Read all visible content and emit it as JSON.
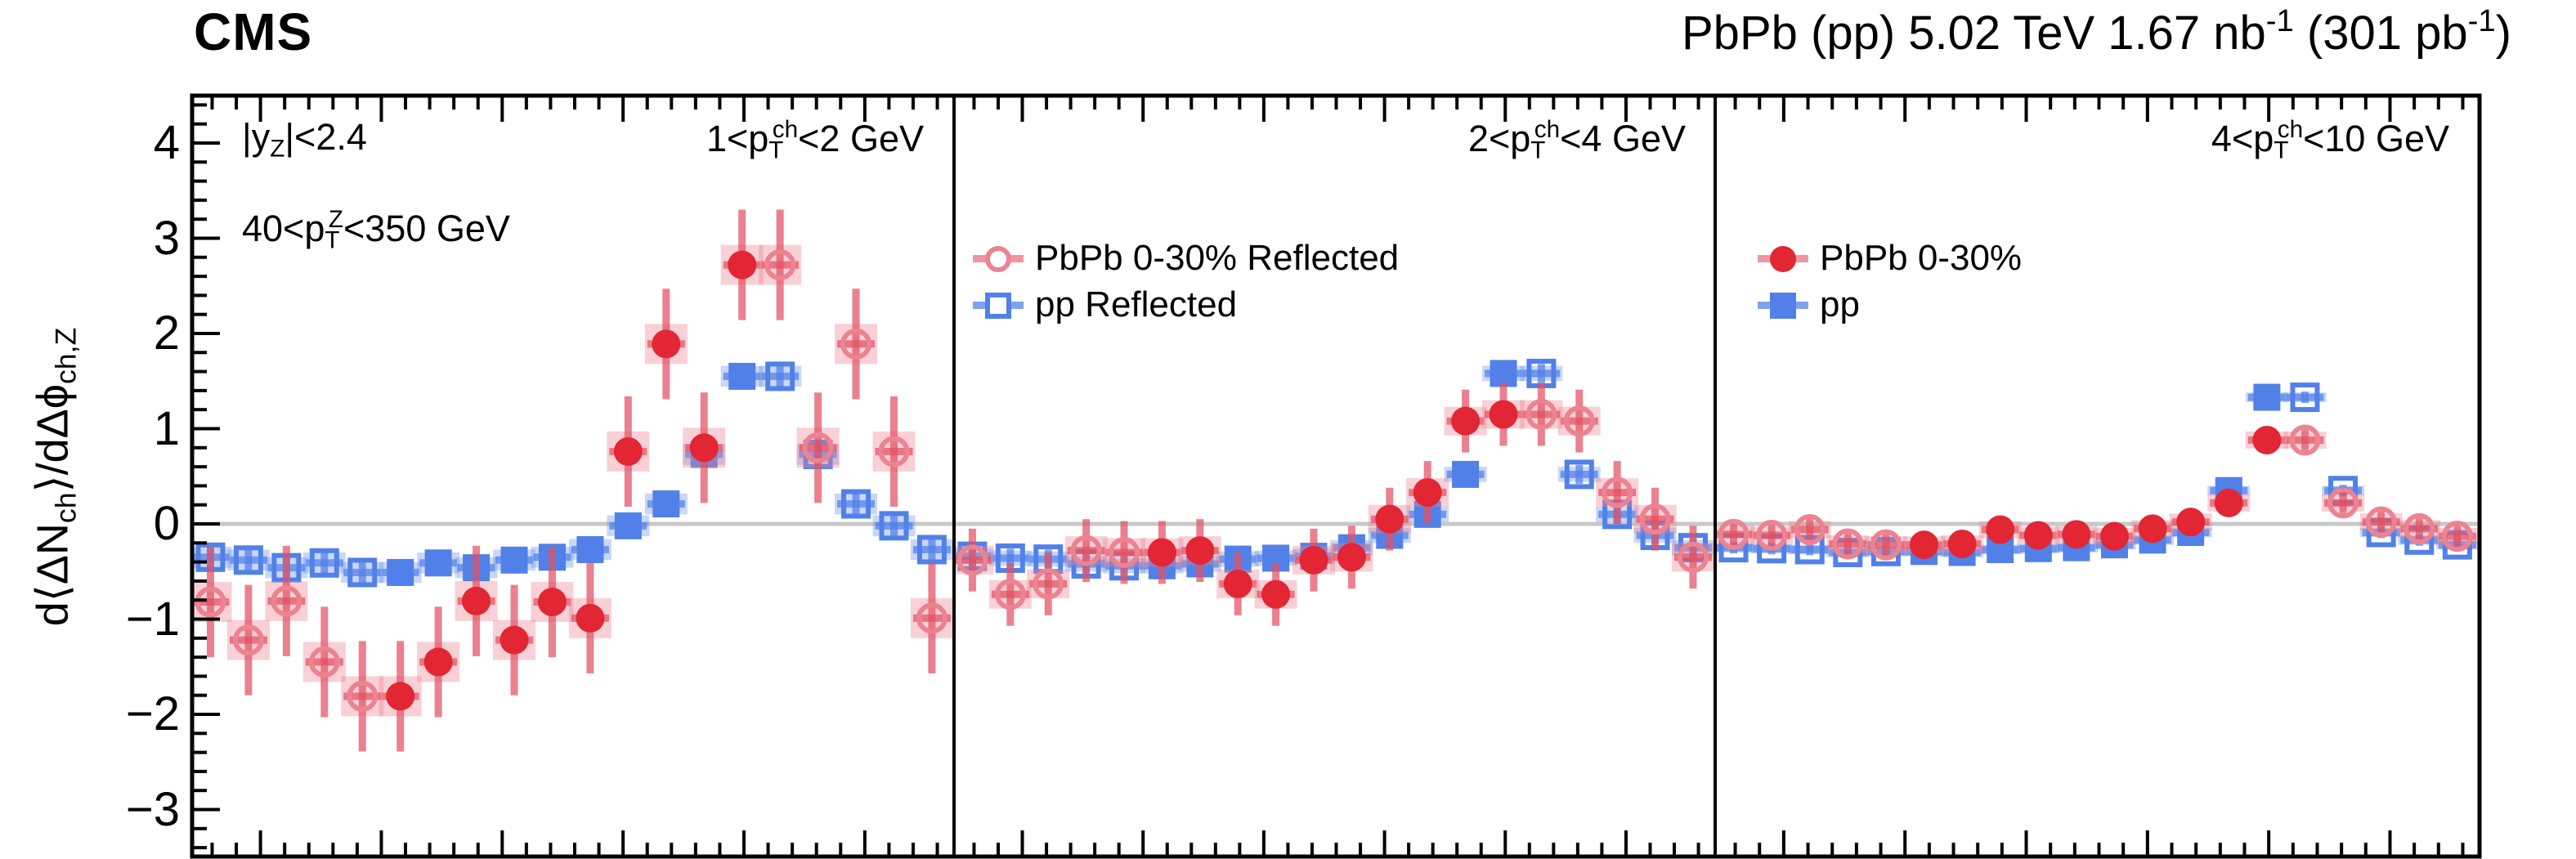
{
  "header": {
    "experiment": "CMS",
    "title_rich": "PbPb (pp) 5.02 TeV 1.67 nb^{-1} (301 pb^{-1})"
  },
  "y_axis": {
    "title_rich": "d⟨ΔN_{ch}⟩/dΔϕ_{ch,Z}",
    "tick_labels": [
      "4",
      "3",
      "2",
      "1",
      "0",
      "−1",
      "−2",
      "−3"
    ],
    "tick_values": [
      4,
      3,
      2,
      1,
      0,
      -1,
      -2,
      -3
    ]
  },
  "annotations": {
    "rapidity": "|y_{Z}|<2.4",
    "z_pt": "40<p_{T}^{Z}<350 GeV"
  },
  "legend_reflected": [
    {
      "label": "PbPb 0-30% Reflected",
      "marker": "circle-open",
      "series": "pbpb"
    },
    {
      "label": "pp Reflected",
      "marker": "square-open",
      "series": "pp"
    }
  ],
  "legend_main": [
    {
      "label": "PbPb 0-30%",
      "marker": "circle-filled",
      "series": "pbpb"
    },
    {
      "label": "pp",
      "marker": "square-filled",
      "series": "pp"
    }
  ],
  "colors": {
    "pbpb": "#e22633",
    "pbpb_open": "#ec8391",
    "pbpb_err": "rgba(227,81,99,0.72)",
    "pbpb_syst": "rgba(236,131,145,0.38)",
    "pp": "#5180e8",
    "pp_err": "rgba(81,128,232,0.72)",
    "pp_syst": "rgba(110,150,238,0.38)",
    "zero_line": "#c8c8c8",
    "frame": "#000000"
  },
  "chart_data": {
    "type": "scatter",
    "x_axis": {
      "measured_min": 1.5708,
      "measured_max": 3.14159,
      "bins": 10,
      "display_min": 0.788,
      "display_max": 3.94,
      "minor_tick_step": 0.1,
      "medium_tick_step": 0.5,
      "tick_anchor": 1.5708
    },
    "y_axis": {
      "min": -3.5,
      "max": 4.5,
      "zero_line": 0
    },
    "reflected_markers": "open markers mirror filled data about pi/2 (left) and pi (right)",
    "panels": [
      {
        "label_rich": "1<p_{T}^{ch}<2 GeV",
        "pbpb": {
          "values": [
            -1.81,
            -1.45,
            -0.81,
            -1.22,
            -0.82,
            -0.99,
            0.76,
            1.89,
            0.8,
            2.72
          ],
          "stat": 0.58,
          "syst": 0.21
        },
        "pp": {
          "values": [
            -0.51,
            -0.41,
            -0.46,
            -0.38,
            -0.35,
            -0.27,
            -0.02,
            0.21,
            0.73,
            1.55
          ],
          "stat": 0.13,
          "syst": 0.11
        }
      },
      {
        "label_rich": "2<p_{T}^{ch}<4 GeV",
        "pbpb": {
          "values": [
            -0.3,
            -0.28,
            -0.63,
            -0.74,
            -0.38,
            -0.35,
            0.05,
            0.33,
            1.08,
            1.15
          ],
          "stat": 0.33,
          "syst": 0.15
        },
        "pp": {
          "values": [
            -0.44,
            -0.42,
            -0.37,
            -0.36,
            -0.34,
            -0.25,
            -0.12,
            0.1,
            0.52,
            1.58
          ],
          "stat": 0.1,
          "syst": 0.08
        }
      },
      {
        "label_rich": "4<p_{T}^{ch}<10 GeV",
        "pbpb": {
          "values": [
            -0.22,
            -0.21,
            -0.06,
            -0.12,
            -0.11,
            -0.13,
            -0.05,
            0.02,
            0.22,
            0.88
          ],
          "stat": 0.13,
          "syst": 0.09
        },
        "pp": {
          "values": [
            -0.29,
            -0.3,
            -0.27,
            -0.26,
            -0.25,
            -0.22,
            -0.17,
            -0.09,
            0.35,
            1.33
          ],
          "stat": 0.06,
          "syst": 0.05
        }
      }
    ]
  }
}
